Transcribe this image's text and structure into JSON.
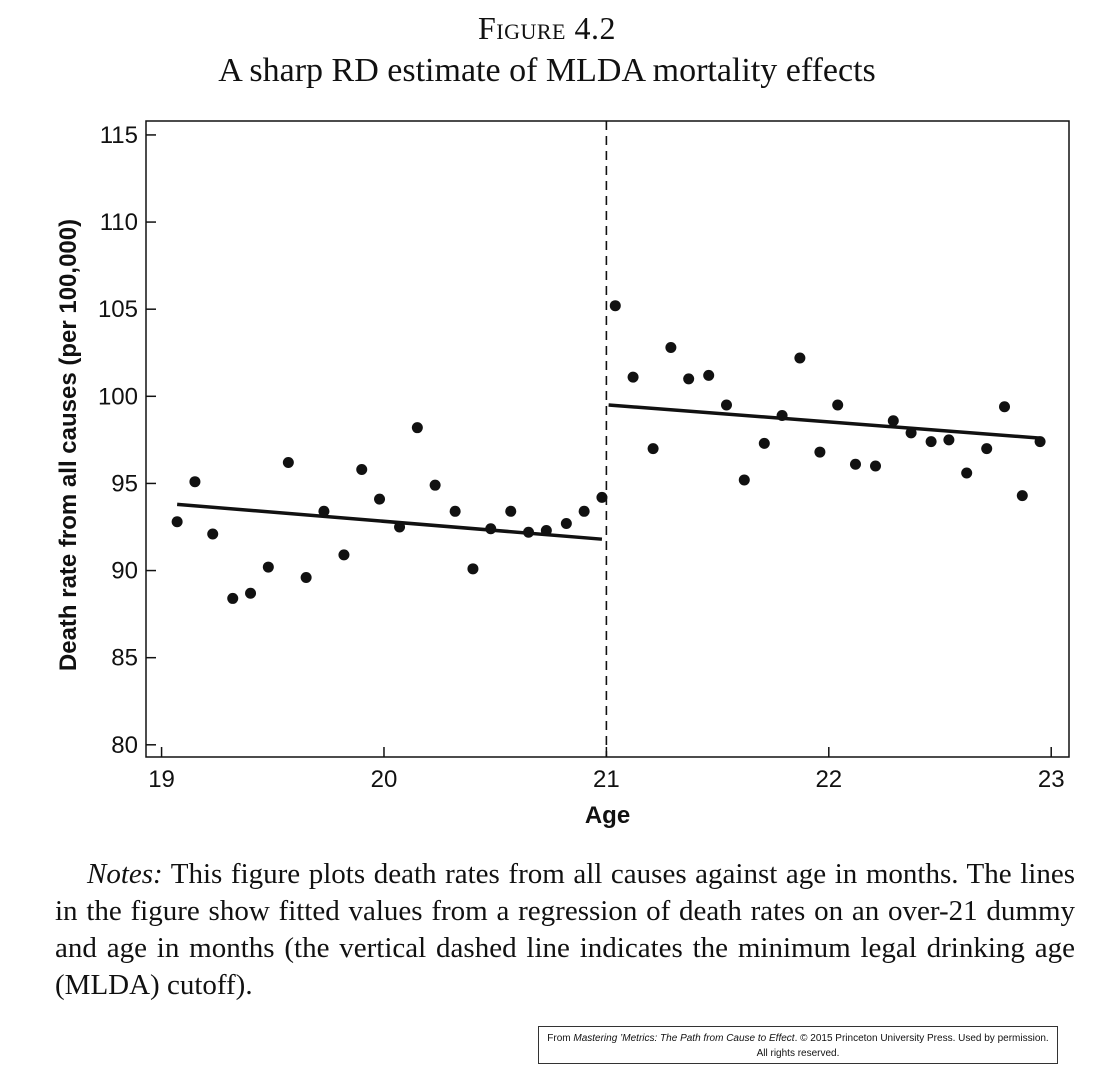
{
  "figure": {
    "label": "Figure 4.2",
    "title": "A sharp RD estimate of MLDA mortality effects"
  },
  "notes": {
    "label": "Notes:",
    "text": "This figure plots death rates from all causes against age in months. The lines in the figure show fitted values from a regression of death rates on an over-21 dummy and age in months (the vertical dashed line indicates the minimum legal drinking age (MLDA) cutoff)."
  },
  "credit": {
    "prefix": "From ",
    "book": "Mastering ’Metrics: The Path from Cause to Effect",
    "suffix": ". © 2015 Princeton University Press. Used by permission.",
    "line2": "All rights reserved."
  },
  "chart_data": {
    "type": "scatter",
    "xlabel": "Age",
    "ylabel": "Death rate from all causes (per 100,000)",
    "xlim": [
      18.93,
      23.08
    ],
    "ylim": [
      79.3,
      115.8
    ],
    "x_ticks": [
      19,
      20,
      21,
      22,
      23
    ],
    "y_ticks": [
      80,
      85,
      90,
      95,
      100,
      105,
      110,
      115
    ],
    "grid": false,
    "legend": "none",
    "cutoff_x": 21,
    "points": [
      [
        19.07,
        92.8
      ],
      [
        19.15,
        95.1
      ],
      [
        19.23,
        92.1
      ],
      [
        19.32,
        88.4
      ],
      [
        19.4,
        88.7
      ],
      [
        19.48,
        90.2
      ],
      [
        19.57,
        96.2
      ],
      [
        19.65,
        89.6
      ],
      [
        19.73,
        93.4
      ],
      [
        19.82,
        90.9
      ],
      [
        19.9,
        95.8
      ],
      [
        19.98,
        94.1
      ],
      [
        20.07,
        92.5
      ],
      [
        20.15,
        98.2
      ],
      [
        20.23,
        94.9
      ],
      [
        20.32,
        93.4
      ],
      [
        20.4,
        90.1
      ],
      [
        20.48,
        92.4
      ],
      [
        20.57,
        93.4
      ],
      [
        20.65,
        92.2
      ],
      [
        20.73,
        92.3
      ],
      [
        20.82,
        92.7
      ],
      [
        20.9,
        93.4
      ],
      [
        20.98,
        94.2
      ],
      [
        21.04,
        105.2
      ],
      [
        21.12,
        101.1
      ],
      [
        21.21,
        97.0
      ],
      [
        21.29,
        102.8
      ],
      [
        21.37,
        101.0
      ],
      [
        21.46,
        101.2
      ],
      [
        21.54,
        99.5
      ],
      [
        21.62,
        95.2
      ],
      [
        21.71,
        97.3
      ],
      [
        21.79,
        98.9
      ],
      [
        21.87,
        102.2
      ],
      [
        21.96,
        96.8
      ],
      [
        22.04,
        99.5
      ],
      [
        22.12,
        96.1
      ],
      [
        22.21,
        96.0
      ],
      [
        22.29,
        98.6
      ],
      [
        22.37,
        97.9
      ],
      [
        22.46,
        97.4
      ],
      [
        22.54,
        97.5
      ],
      [
        22.62,
        95.6
      ],
      [
        22.71,
        97.0
      ],
      [
        22.79,
        99.4
      ],
      [
        22.87,
        94.3
      ],
      [
        22.95,
        97.4
      ]
    ],
    "fitted_lines": [
      {
        "x": [
          19.07,
          20.98
        ],
        "y": [
          93.8,
          91.8
        ]
      },
      {
        "x": [
          21.01,
          22.95
        ],
        "y": [
          99.5,
          97.6
        ]
      }
    ]
  }
}
